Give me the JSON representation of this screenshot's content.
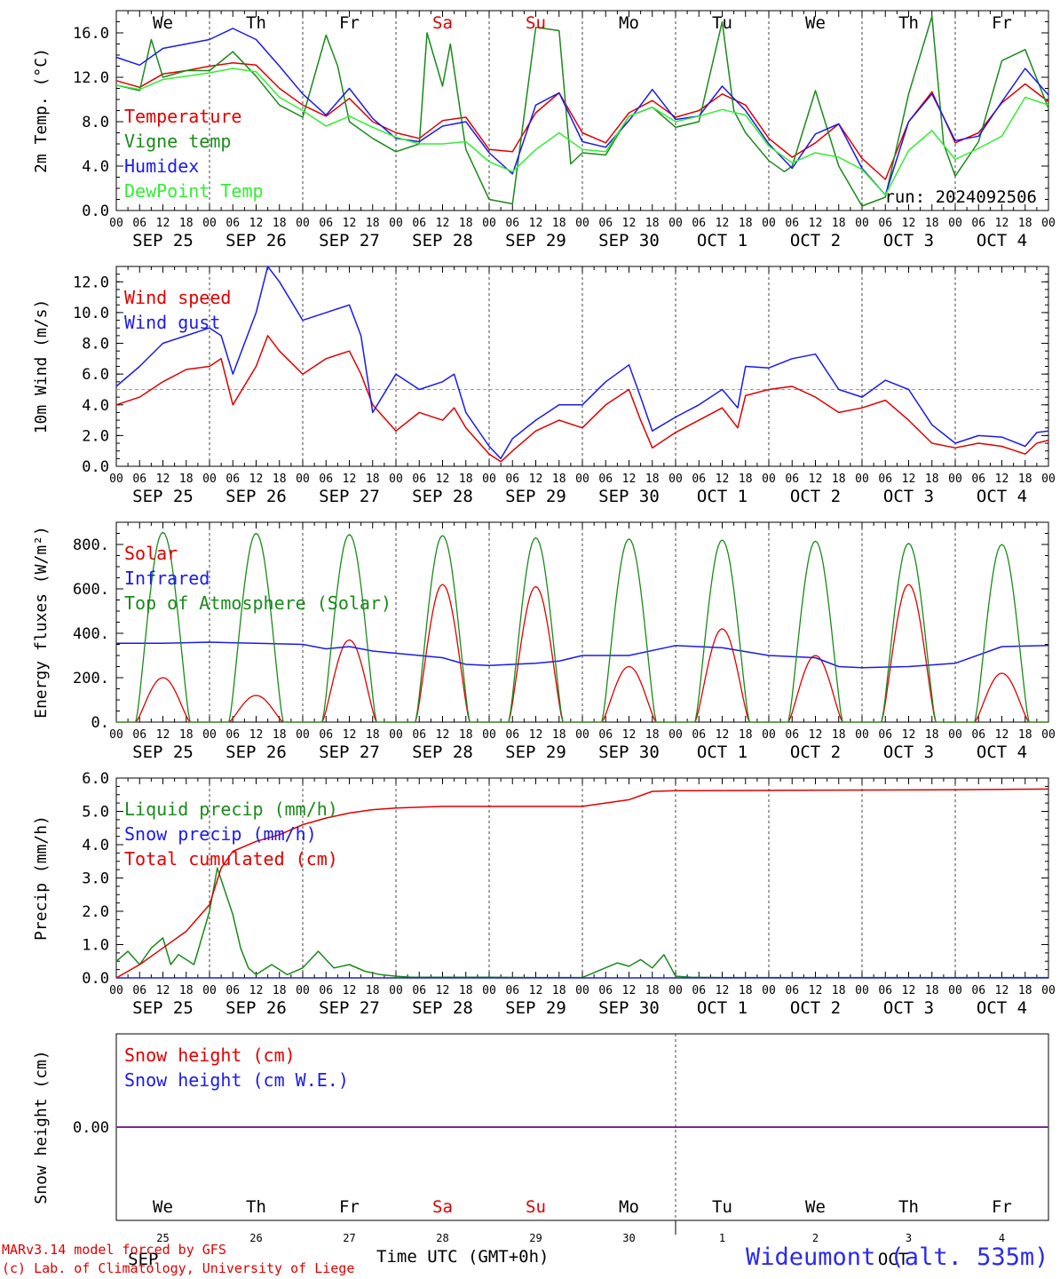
{
  "day_names": [
    "We",
    "Th",
    "Fr",
    "Sa",
    "Su",
    "Mo",
    "Tu",
    "We",
    "Th",
    "Fr"
  ],
  "day_name_colors": [
    "#000000",
    "#000000",
    "#000000",
    "#e00000",
    "#e00000",
    "#000000",
    "#000000",
    "#000000",
    "#000000",
    "#000000"
  ],
  "date_labels": [
    "SEP 25",
    "SEP 26",
    "SEP 27",
    "SEP 28",
    "SEP 29",
    "SEP 30",
    "OCT  1",
    "OCT  2",
    "OCT  3",
    "OCT  4"
  ],
  "hour_labels": [
    "00",
    "06",
    "12",
    "18"
  ],
  "final_hour_label": "00",
  "bottom_day_numbers": [
    "25",
    "26",
    "27",
    "28",
    "29",
    "30",
    "1",
    "2",
    "3",
    "4"
  ],
  "bottom_month_left": "SEP",
  "bottom_month_right": "OCT",
  "x_title": "Time UTC (GMT+0h)",
  "run_label": "run: 2024092506",
  "credits": [
    "MARv3.14 model forced by GFS",
    "(c) Lab. of Climatology, University of Liege"
  ],
  "station": "Wideumont (alt. 535m)",
  "colors": {
    "red": "#e00000",
    "blue": "#1a1aee",
    "darkgreen": "#1a8a1a",
    "lightgreen": "#33ee33",
    "purple": "#7a2a8a",
    "grey": "#999999"
  },
  "chart_data": [
    {
      "type": "line",
      "ylabel": "2m Temp. (°C)",
      "ylim": [
        0,
        18
      ],
      "yticks": [
        "0.0",
        "4.0",
        "8.0",
        "12.0",
        "16.0"
      ],
      "ytick_values": [
        0,
        4,
        8,
        12,
        16
      ],
      "x_unit": "hours since 2024-09-25 00:00 UTC",
      "series": [
        {
          "name": "Temperature",
          "color": "red",
          "x": [
            0,
            6,
            12,
            18,
            24,
            30,
            36,
            42,
            48,
            54,
            60,
            66,
            72,
            78,
            84,
            90,
            96,
            102,
            108,
            114,
            120,
            126,
            132,
            138,
            144,
            150,
            156,
            162,
            168,
            174,
            180,
            186,
            192,
            198,
            204,
            210,
            216,
            222,
            228,
            234,
            240
          ],
          "values": [
            11.7,
            11.1,
            12.3,
            12.6,
            13.0,
            13.3,
            13.1,
            11.0,
            9.5,
            8.5,
            10.1,
            8.0,
            7.0,
            6.5,
            8.1,
            8.4,
            5.5,
            5.3,
            8.8,
            10.6,
            7.0,
            6.1,
            8.8,
            9.9,
            8.4,
            9.0,
            10.5,
            9.5,
            6.5,
            4.8,
            6.1,
            7.8,
            4.7,
            2.8,
            8.0,
            10.7,
            6.1,
            7.0,
            9.7,
            11.4,
            9.8
          ]
        },
        {
          "name": "Vigne temp",
          "color": "darkgreen",
          "x": [
            0,
            6,
            9,
            12,
            18,
            24,
            30,
            36,
            42,
            48,
            54,
            57,
            60,
            66,
            72,
            78,
            80,
            84,
            86,
            90,
            96,
            102,
            108,
            114,
            117,
            120,
            126,
            132,
            138,
            144,
            150,
            156,
            159,
            162,
            168,
            172,
            174,
            180,
            186,
            192,
            198,
            204,
            210,
            213,
            216,
            222,
            228,
            234,
            240
          ],
          "values": [
            11.3,
            10.8,
            15.4,
            12.0,
            12.6,
            12.6,
            14.3,
            12.1,
            9.5,
            8.4,
            15.8,
            13.0,
            8.0,
            6.5,
            5.3,
            6.0,
            16.0,
            11.2,
            15.0,
            5.5,
            1.0,
            0.6,
            16.5,
            16.2,
            4.2,
            5.2,
            5.0,
            8.5,
            9.3,
            7.5,
            8.0,
            17.0,
            9.0,
            7.0,
            4.5,
            3.5,
            4.0,
            10.8,
            4.0,
            0.4,
            1.2,
            10.5,
            17.5,
            6.0,
            3.1,
            6.2,
            13.5,
            14.5,
            9.2
          ]
        },
        {
          "name": "Humidex",
          "color": "blue",
          "x": [
            0,
            6,
            12,
            18,
            24,
            30,
            36,
            42,
            48,
            54,
            60,
            66,
            72,
            78,
            84,
            90,
            96,
            102,
            108,
            114,
            120,
            126,
            132,
            138,
            144,
            150,
            156,
            162,
            168,
            174,
            180,
            186,
            192,
            198,
            204,
            210,
            216,
            222,
            228,
            234,
            240
          ],
          "values": [
            13.8,
            13.1,
            14.6,
            15.0,
            15.4,
            16.4,
            15.4,
            13.0,
            10.5,
            8.6,
            11.0,
            8.3,
            6.5,
            6.2,
            7.6,
            8.0,
            5.2,
            3.3,
            9.5,
            10.6,
            6.2,
            5.7,
            8.1,
            10.9,
            8.2,
            8.5,
            11.2,
            9.0,
            6.0,
            3.8,
            6.9,
            7.8,
            3.8,
            1.4,
            8.0,
            10.5,
            6.3,
            6.7,
            9.8,
            12.8,
            10.4
          ]
        },
        {
          "name": "DewPoint Temp",
          "color": "lightgreen",
          "x": [
            0,
            6,
            12,
            18,
            24,
            30,
            36,
            42,
            48,
            54,
            60,
            66,
            72,
            78,
            84,
            90,
            96,
            102,
            108,
            114,
            120,
            126,
            132,
            138,
            144,
            150,
            156,
            162,
            168,
            174,
            180,
            186,
            192,
            198,
            204,
            210,
            216,
            222,
            228,
            234,
            240
          ],
          "values": [
            11.3,
            10.9,
            11.8,
            12.1,
            12.4,
            12.8,
            12.5,
            10.2,
            9.0,
            7.6,
            8.5,
            7.5,
            6.6,
            6.0,
            6.0,
            6.2,
            4.4,
            3.5,
            5.5,
            7.0,
            5.5,
            5.3,
            8.5,
            9.3,
            8.0,
            8.5,
            9.1,
            8.6,
            5.8,
            4.3,
            5.2,
            4.8,
            3.7,
            1.4,
            5.4,
            7.2,
            4.6,
            5.6,
            6.7,
            10.2,
            9.5
          ]
        }
      ]
    },
    {
      "type": "line",
      "ylabel": "10m Wind (m/s)",
      "ylim": [
        0,
        13
      ],
      "yticks": [
        "0.0",
        "2.0",
        "4.0",
        "6.0",
        "8.0",
        "10.0",
        "12.0"
      ],
      "ytick_values": [
        0,
        2,
        4,
        6,
        8,
        10,
        12
      ],
      "reference_line": 5.0,
      "series": [
        {
          "name": "Wind speed",
          "color": "red",
          "x": [
            0,
            6,
            12,
            18,
            24,
            27,
            30,
            36,
            39,
            42,
            48,
            54,
            60,
            63,
            66,
            72,
            78,
            84,
            87,
            90,
            96,
            99,
            102,
            108,
            114,
            120,
            126,
            132,
            135,
            138,
            144,
            150,
            156,
            160,
            162,
            168,
            174,
            180,
            186,
            192,
            198,
            204,
            210,
            216,
            222,
            228,
            234,
            237,
            240
          ],
          "values": [
            4.0,
            4.5,
            5.5,
            6.3,
            6.5,
            7.0,
            4.0,
            6.5,
            8.5,
            7.5,
            6.0,
            7.0,
            7.5,
            6.0,
            4.0,
            2.3,
            3.5,
            3.0,
            3.8,
            2.5,
            0.8,
            0.3,
            1.0,
            2.3,
            3.0,
            2.5,
            4.0,
            5.0,
            3.0,
            1.2,
            2.2,
            3.0,
            3.8,
            2.5,
            4.6,
            5.0,
            5.2,
            4.5,
            3.5,
            3.8,
            4.3,
            3.0,
            1.5,
            1.2,
            1.5,
            1.3,
            0.8,
            1.5,
            1.7
          ]
        },
        {
          "name": "Wind gust",
          "color": "blue",
          "x": [
            0,
            6,
            12,
            18,
            24,
            27,
            30,
            36,
            39,
            42,
            48,
            54,
            60,
            63,
            66,
            72,
            78,
            84,
            87,
            90,
            96,
            99,
            102,
            108,
            114,
            120,
            126,
            132,
            135,
            138,
            144,
            150,
            156,
            160,
            162,
            168,
            174,
            180,
            186,
            192,
            198,
            204,
            210,
            216,
            222,
            228,
            234,
            237,
            240
          ],
          "values": [
            5.2,
            6.5,
            8.0,
            8.5,
            9.0,
            8.5,
            6.0,
            10.0,
            13.0,
            12.0,
            9.5,
            10.0,
            10.5,
            8.5,
            3.5,
            6.0,
            5.0,
            5.5,
            6.0,
            3.5,
            1.3,
            0.5,
            1.8,
            3.0,
            4.0,
            4.0,
            5.5,
            6.6,
            4.5,
            2.3,
            3.2,
            4.0,
            5.0,
            3.8,
            6.5,
            6.4,
            7.0,
            7.3,
            5.0,
            4.5,
            5.6,
            5.0,
            2.7,
            1.5,
            2.0,
            1.9,
            1.3,
            2.2,
            2.3
          ]
        }
      ]
    },
    {
      "type": "line",
      "ylabel": "Energy fluxes (W/m²)",
      "ylim": [
        0,
        900
      ],
      "yticks": [
        "0.",
        "200.",
        "400.",
        "600.",
        "800."
      ],
      "ytick_values": [
        0,
        200,
        400,
        600,
        800
      ],
      "series": [
        {
          "name": "Solar",
          "color": "red",
          "peaks": [
            200,
            120,
            370,
            620,
            610,
            250,
            420,
            300,
            620,
            220
          ]
        },
        {
          "name": "Infrared",
          "color": "blue",
          "x": [
            0,
            12,
            24,
            36,
            48,
            54,
            60,
            66,
            72,
            78,
            84,
            90,
            96,
            108,
            114,
            120,
            132,
            144,
            156,
            168,
            180,
            186,
            192,
            204,
            216,
            228,
            240
          ],
          "values": [
            355,
            355,
            360,
            355,
            350,
            330,
            340,
            320,
            310,
            300,
            290,
            260,
            255,
            265,
            275,
            300,
            300,
            345,
            335,
            300,
            290,
            250,
            245,
            250,
            265,
            340,
            345
          ]
        },
        {
          "name": "Top of Atmosphere (Solar)",
          "color": "darkgreen",
          "peaks": [
            855,
            850,
            845,
            840,
            830,
            825,
            820,
            815,
            805,
            800
          ]
        }
      ]
    },
    {
      "type": "line",
      "ylabel": "Precip (mm/h)",
      "ylim": [
        0,
        6
      ],
      "yticks": [
        "0.0",
        "1.0",
        "2.0",
        "3.0",
        "4.0",
        "5.0",
        "6.0"
      ],
      "ytick_values": [
        0,
        1,
        2,
        3,
        4,
        5,
        6
      ],
      "series": [
        {
          "name": "Liquid precip (mm/h)",
          "color": "darkgreen",
          "x": [
            0,
            3,
            6,
            9,
            12,
            14,
            16,
            20,
            24,
            26,
            28,
            30,
            32,
            34,
            36,
            40,
            44,
            48,
            52,
            56,
            60,
            64,
            68,
            72,
            76,
            80,
            84,
            96,
            108,
            120,
            129,
            132,
            135,
            138,
            141,
            144,
            148,
            156,
            168,
            180,
            192,
            204,
            216,
            228,
            240
          ],
          "values": [
            0.5,
            0.8,
            0.4,
            0.9,
            1.2,
            0.4,
            0.7,
            0.4,
            2.0,
            3.3,
            2.6,
            1.9,
            0.9,
            0.3,
            0.1,
            0.4,
            0.1,
            0.3,
            0.8,
            0.3,
            0.4,
            0.2,
            0.1,
            0.05,
            0.02,
            0.02,
            0.02,
            0.02,
            0.01,
            0.01,
            0.45,
            0.35,
            0.55,
            0.3,
            0.7,
            0.05,
            0.02,
            0.01,
            0.01,
            0.01,
            0.01,
            0.01,
            0.01,
            0.01,
            0.01
          ]
        },
        {
          "name": "Snow precip (mm/h)",
          "color": "blue",
          "x": [
            0,
            240
          ],
          "values": [
            0,
            0
          ]
        },
        {
          "name": "Total cumulated (cm)",
          "color": "red",
          "x": [
            0,
            6,
            12,
            18,
            24,
            27,
            30,
            36,
            42,
            48,
            54,
            60,
            66,
            72,
            84,
            96,
            108,
            120,
            132,
            138,
            144,
            168,
            192,
            216,
            240
          ],
          "values": [
            0.0,
            0.4,
            0.9,
            1.4,
            2.2,
            3.3,
            3.8,
            4.1,
            4.3,
            4.6,
            4.8,
            4.95,
            5.05,
            5.1,
            5.15,
            5.15,
            5.15,
            5.15,
            5.35,
            5.6,
            5.62,
            5.63,
            5.64,
            5.65,
            5.67
          ]
        }
      ]
    },
    {
      "type": "line",
      "ylabel": "Snow height (cm)",
      "ylim": [
        -1,
        1
      ],
      "yticks": [
        "0.00"
      ],
      "ytick_values": [
        0
      ],
      "series": [
        {
          "name": "Snow height (cm)",
          "color": "red",
          "x": [
            0,
            240
          ],
          "values": [
            0,
            0
          ]
        },
        {
          "name": "Snow height (cm W.E.)",
          "color": "blue",
          "x": [
            0,
            240
          ],
          "values": [
            0,
            0
          ]
        }
      ]
    }
  ]
}
